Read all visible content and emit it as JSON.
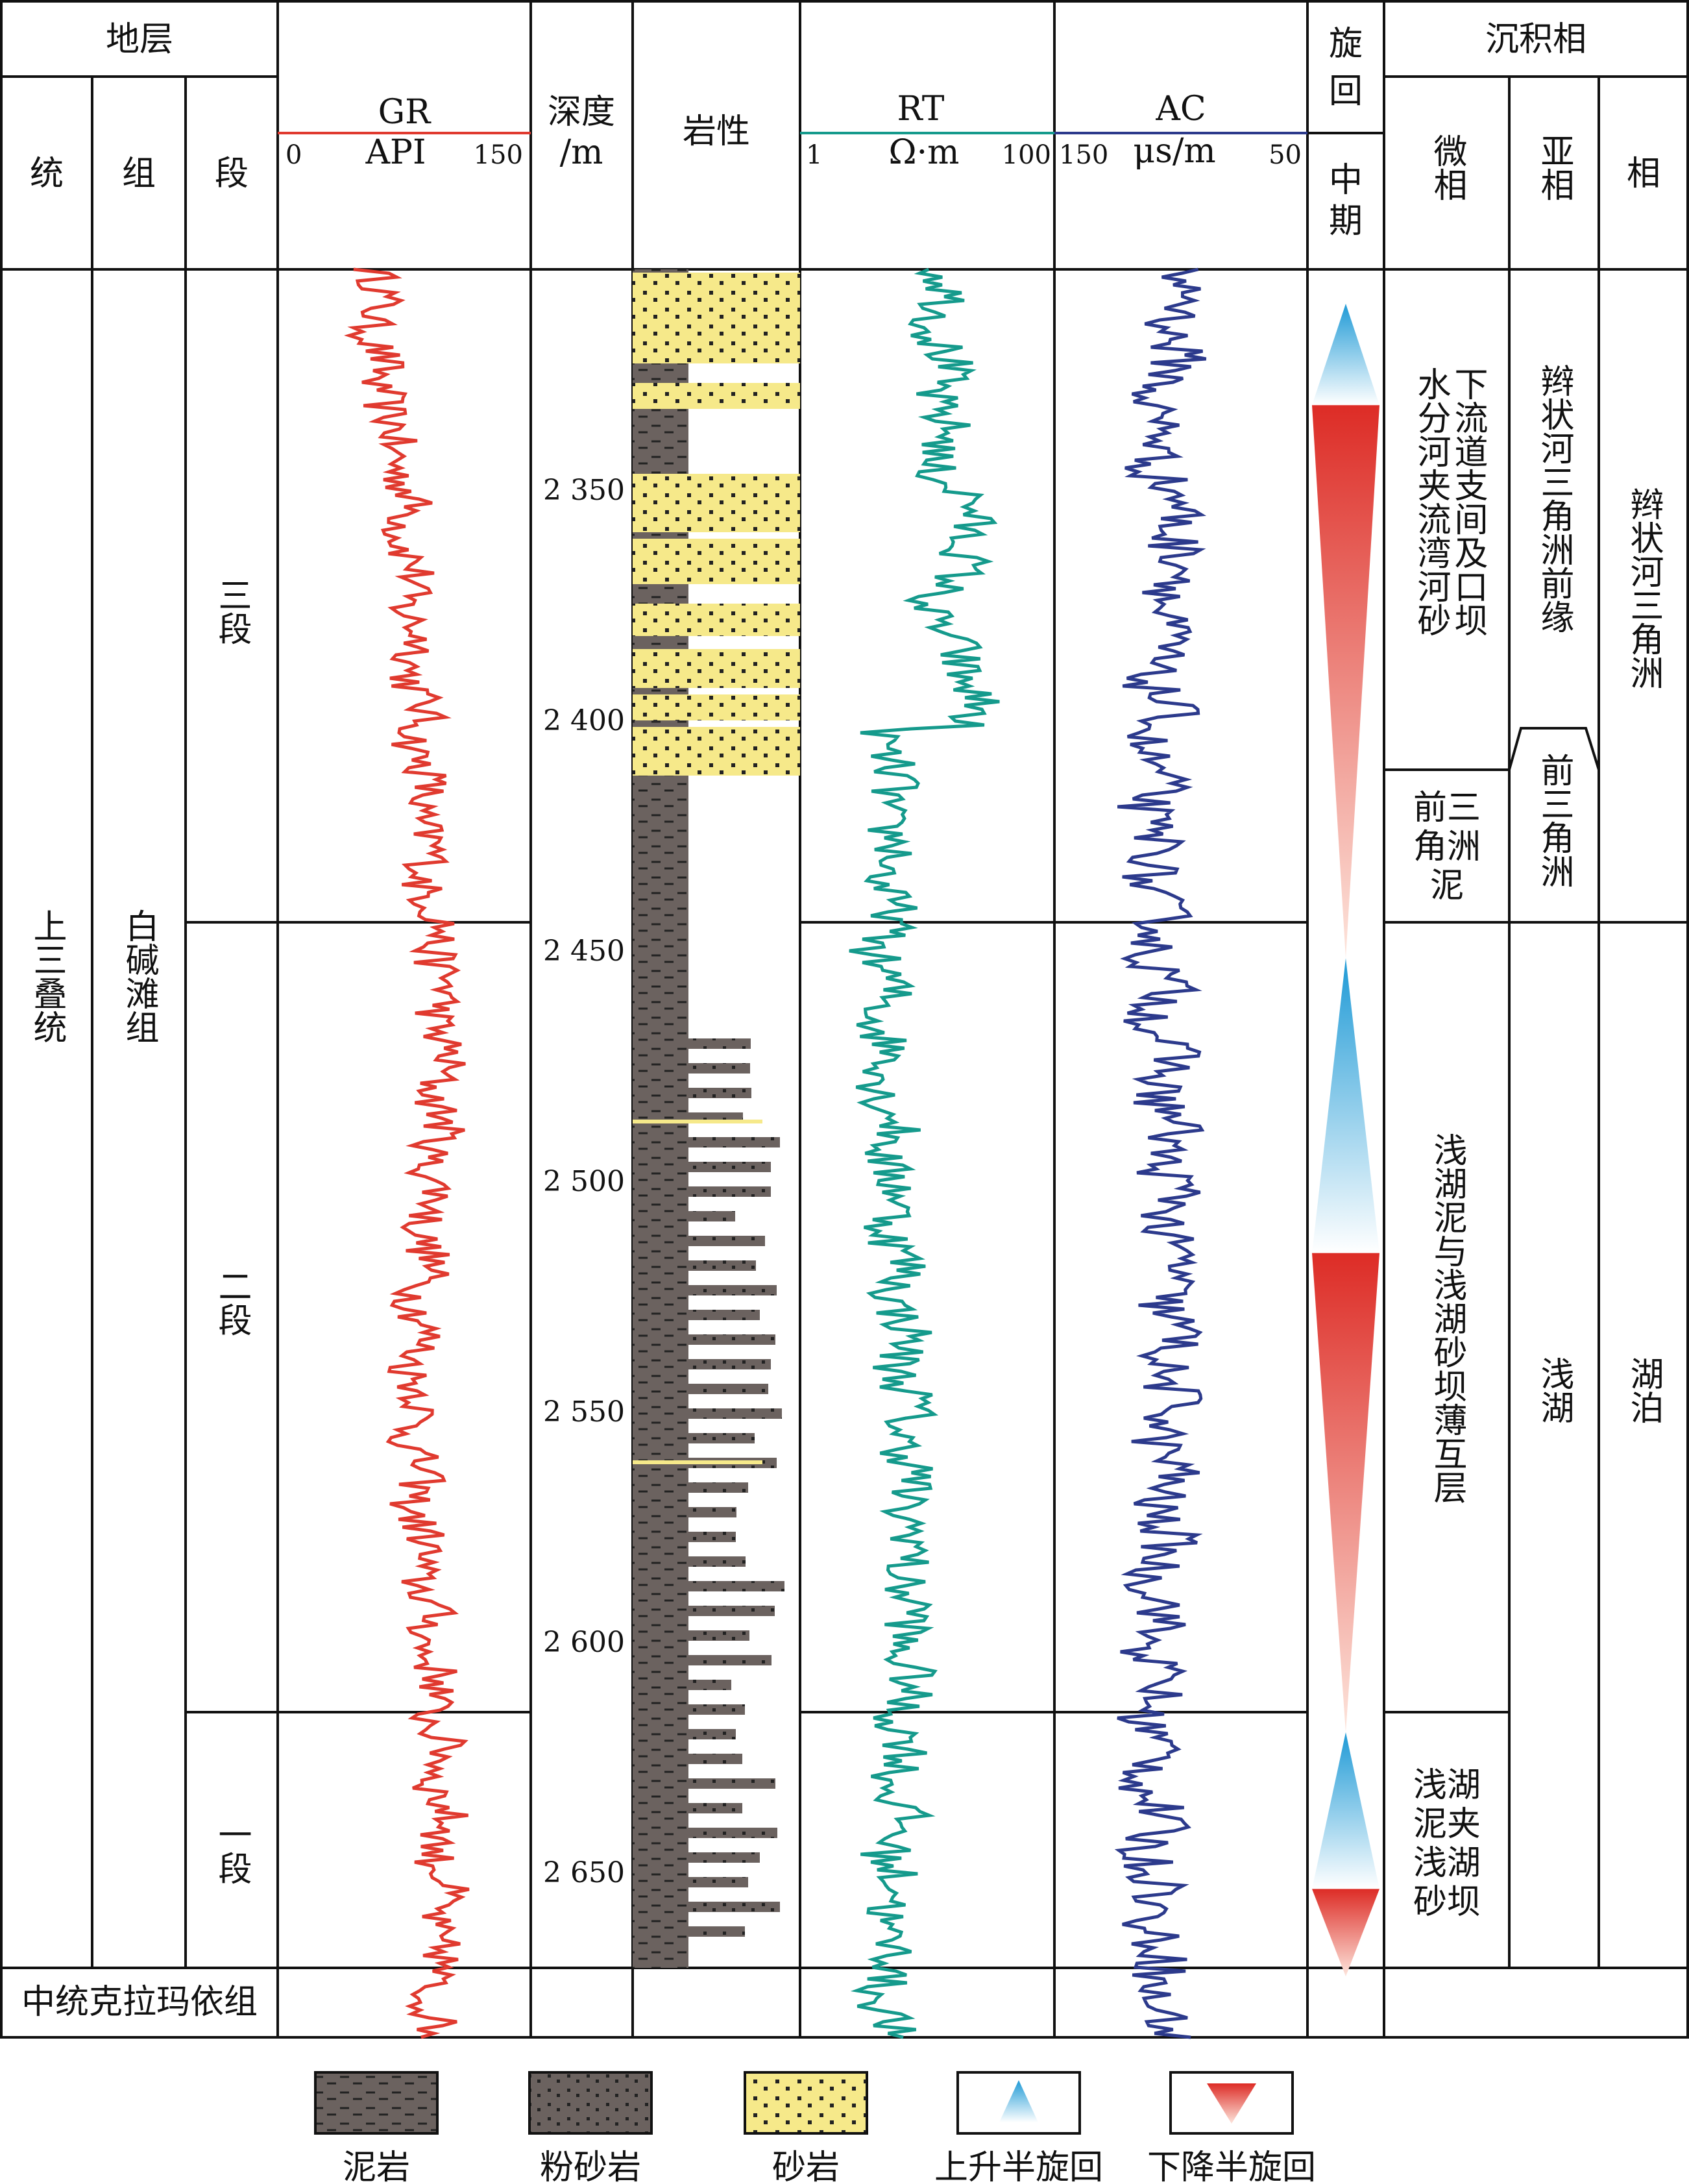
{
  "header": {
    "strata": "地层",
    "series": "统",
    "formation": "组",
    "member": "段",
    "depth_l1": "深度",
    "depth_l2": "/m",
    "lithology": "岩性",
    "cycle_l1": "旋",
    "cycle_l2": "回",
    "mid_l1": "中",
    "mid_l2": "期",
    "facies": "沉积相",
    "microfacies": "微相",
    "subfacies": "亚相",
    "facies_col": "相"
  },
  "curves": {
    "gr": {
      "name": "GR",
      "unit": "API",
      "min": "0",
      "max": "150",
      "color": "#e03a2f"
    },
    "rt": {
      "name": "RT",
      "unit": "Ω·m",
      "min": "1",
      "max": "100",
      "color": "#159a8c"
    },
    "ac": {
      "name": "AC",
      "unit": "μs/m",
      "min": "150",
      "max": "50",
      "color": "#2c3a8c"
    }
  },
  "strata": {
    "series_main": "上三叠统",
    "formation_main": "白碱滩组",
    "members": [
      "三段",
      "二段",
      "一段"
    ],
    "bottom_unit": "中统克拉玛依组"
  },
  "depth_ticks": [
    "2 350",
    "2 400",
    "2 450",
    "2 500",
    "2 550",
    "2 600",
    "2 650"
  ],
  "facies": {
    "micro_upper": [
      "下",
      "流",
      "道",
      "支",
      "间",
      "及",
      "口",
      "坝"
    ],
    "micro_upper_col1": [
      "水",
      "分",
      "河",
      "夹",
      "流",
      "湾",
      "河",
      "砂"
    ],
    "micro_prodelta": [
      "前三",
      "角洲",
      "泥"
    ],
    "micro_middle": "浅湖泥与浅湖砂坝薄互层",
    "micro_lower": [
      "浅湖",
      "泥夹",
      "浅湖",
      "砂坝"
    ],
    "sub_upper": "辫状河三角洲前缘",
    "sub_prodelta": "前三角洲",
    "sub_lower": "浅湖",
    "facies_upper": "辫状河三角洲",
    "facies_lower": "湖泊"
  },
  "legend": {
    "mudstone": "泥岩",
    "siltstone": "粉砂岩",
    "sandstone": "砂岩",
    "rising": "上升半旋回",
    "falling": "下降半旋回"
  },
  "colors": {
    "sand_yellow": "#f6e98a",
    "mud_gray": "#6b625f",
    "rise_blue": "#2a9fd6",
    "fall_red": "#e0322c"
  },
  "chart_data": {
    "type": "well-log",
    "depth_range_m": [
      2310,
      2690
    ],
    "cycles": [
      {
        "kind": "rising",
        "top_m": 2310,
        "bottom_m": 2332
      },
      {
        "kind": "falling",
        "top_m": 2332,
        "bottom_m": 2452
      },
      {
        "kind": "rising",
        "top_m": 2452,
        "bottom_m": 2516
      },
      {
        "kind": "falling",
        "top_m": 2516,
        "bottom_m": 2620
      },
      {
        "kind": "rising",
        "top_m": 2620,
        "bottom_m": 2654
      },
      {
        "kind": "falling",
        "top_m": 2654,
        "bottom_m": 2673
      }
    ],
    "member_boundaries_m": [
      2452,
      2623,
      2680
    ]
  }
}
